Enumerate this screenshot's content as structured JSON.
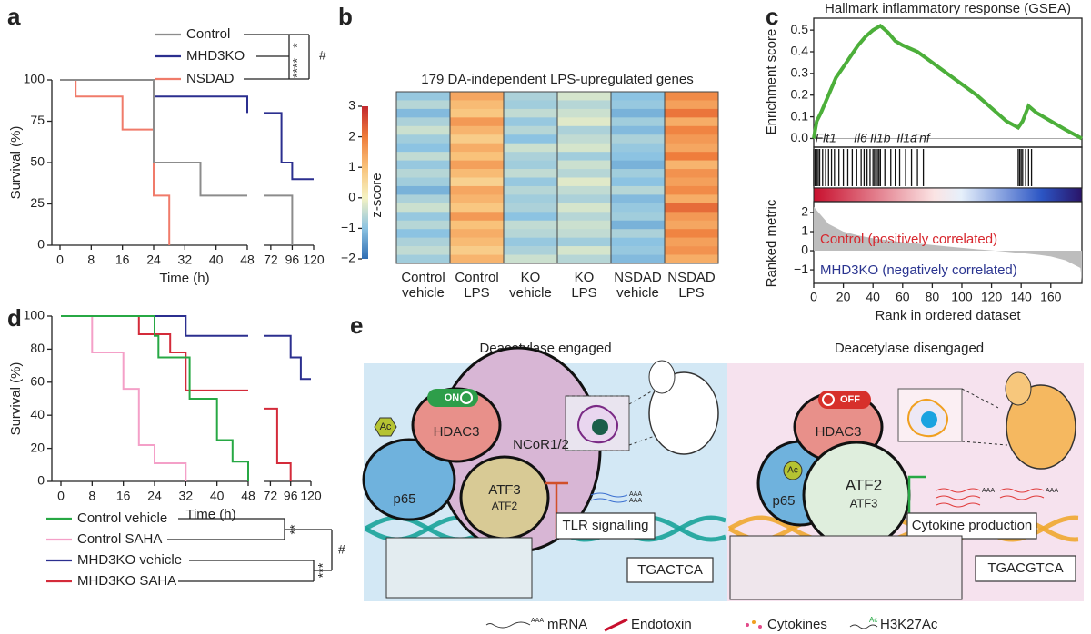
{
  "panel_labels": [
    "a",
    "b",
    "c",
    "d",
    "e"
  ],
  "chart_data": [
    {
      "type": "survival",
      "ylabel": "Survival (%)",
      "xlabel": "Time (h)",
      "xsegments": [
        {
          "xlim": [
            0,
            48
          ],
          "xticks": [
            0,
            8,
            16,
            24,
            32,
            40,
            48
          ]
        },
        {
          "xlim": [
            64,
            120
          ],
          "xticks": [
            72,
            96,
            120
          ]
        }
      ],
      "ylim": [
        0,
        100
      ],
      "yticks": [
        0,
        25,
        50,
        75,
        100
      ],
      "series": [
        {
          "name": "Control",
          "color": "#8c8c8c",
          "x": [
            0,
            24,
            24,
            36,
            36,
            48,
            48,
            64,
            96,
            96
          ],
          "values": [
            100,
            100,
            50,
            50,
            30,
            30,
            null,
            30,
            30,
            0
          ]
        },
        {
          "name": "MHD3KO",
          "color": "#2b2f8f",
          "x": [
            0,
            24,
            24,
            48,
            48,
            48,
            64,
            84,
            84,
            96,
            96,
            120
          ],
          "values": [
            100,
            100,
            90,
            90,
            80,
            null,
            80,
            80,
            50,
            50,
            40,
            40
          ]
        },
        {
          "name": "NSDAD",
          "color": "#f07b6a",
          "x": [
            0,
            4,
            4,
            16,
            16,
            24,
            24,
            28,
            28
          ],
          "values": [
            100,
            100,
            90,
            90,
            70,
            70,
            30,
            30,
            0
          ]
        }
      ],
      "annotations": [
        "*",
        "****",
        "#"
      ]
    },
    {
      "type": "heatmap",
      "title": "179 DA-independent LPS-upregulated genes",
      "categories": [
        "Control\nvehicle",
        "Control\nLPS",
        "KO\nvehicle",
        "KO\nLPS",
        "NSDAD\nvehicle",
        "NSDAD\nLPS"
      ],
      "zlabel": "z-score",
      "zlim": [
        -2,
        3
      ],
      "zticks": [
        {
          "value": -2,
          "label": "−2"
        },
        {
          "value": -1,
          "label": "−1"
        },
        0,
        1,
        2,
        3
      ],
      "colors": [
        "#2f6db3",
        "#8cc3e2",
        "#f5f3c3",
        "#f9c27a",
        "#ef7d3c",
        "#c3282e"
      ],
      "values": [
        [
          -0.9,
          1.4,
          -0.7,
          -0.3,
          -1.0,
          1.8
        ],
        [
          -0.6,
          1.1,
          -0.8,
          -0.6,
          -0.9,
          1.5
        ],
        [
          -1.1,
          0.9,
          -0.5,
          -0.4,
          -1.2,
          2.1
        ],
        [
          -0.7,
          1.6,
          -0.9,
          -0.2,
          -0.8,
          1.3
        ],
        [
          -0.4,
          1.2,
          -0.6,
          -0.7,
          -1.1,
          1.9
        ],
        [
          -0.8,
          0.8,
          -1.0,
          -0.5,
          -0.7,
          1.6
        ],
        [
          -1.0,
          1.3,
          -0.4,
          -0.3,
          -0.9,
          1.4
        ],
        [
          -0.5,
          1.0,
          -0.7,
          -0.8,
          -1.0,
          2.0
        ],
        [
          -0.9,
          1.5,
          -0.8,
          -0.4,
          -1.2,
          1.2
        ],
        [
          -0.6,
          1.1,
          -0.5,
          -0.6,
          -0.8,
          1.7
        ],
        [
          -0.8,
          0.7,
          -0.9,
          -0.2,
          -1.0,
          1.5
        ],
        [
          -1.2,
          1.4,
          -0.6,
          -0.5,
          -0.6,
          1.8
        ],
        [
          -0.7,
          1.2,
          -0.8,
          -0.7,
          -1.1,
          1.3
        ],
        [
          -0.4,
          0.9,
          -0.7,
          -0.3,
          -0.9,
          2.2
        ],
        [
          -0.9,
          1.6,
          -1.0,
          -0.6,
          -0.8,
          1.6
        ],
        [
          -0.6,
          1.0,
          -0.5,
          -0.4,
          -1.2,
          1.4
        ],
        [
          -1.0,
          1.3,
          -0.6,
          -0.5,
          -0.7,
          1.9
        ],
        [
          -0.7,
          1.1,
          -0.9,
          -0.8,
          -1.0,
          1.5
        ],
        [
          -0.5,
          0.8,
          -0.7,
          -0.3,
          -0.9,
          1.7
        ],
        [
          -0.8,
          1.2,
          -0.4,
          -0.6,
          -1.1,
          1.3
        ]
      ]
    },
    {
      "type": "gsea",
      "title": "Hallmark inflammatory response (GSEA)",
      "ylabel": "Enrichment score",
      "xlabel": "Rank in ordered dataset",
      "xlim": [
        0,
        181
      ],
      "xticks": [
        0,
        20,
        40,
        60,
        80,
        100,
        120,
        140,
        160
      ],
      "ylim": [
        -0.04,
        0.555
      ],
      "yticks": [
        {
          "value": 0,
          "label": "0.0"
        },
        0.1,
        0.2,
        0.3,
        0.4,
        0.5
      ],
      "color": "#4caf3a",
      "x": [
        0,
        2,
        5,
        10,
        15,
        20,
        25,
        30,
        35,
        40,
        45,
        50,
        55,
        60,
        70,
        80,
        90,
        100,
        110,
        120,
        130,
        138,
        141,
        145,
        150,
        160,
        170,
        181
      ],
      "values": [
        0,
        0.08,
        0.12,
        0.2,
        0.28,
        0.33,
        0.38,
        0.43,
        0.47,
        0.5,
        0.52,
        0.49,
        0.45,
        0.43,
        0.4,
        0.35,
        0.3,
        0.25,
        0.2,
        0.14,
        0.08,
        0.05,
        0.08,
        0.15,
        0.12,
        0.08,
        0.04,
        0
      ],
      "hits": [
        0,
        1,
        2,
        3,
        4,
        6,
        8,
        10,
        12,
        14,
        17,
        20,
        23,
        26,
        29,
        32,
        34,
        36,
        38,
        40,
        41,
        42,
        43,
        44,
        45,
        48,
        52,
        55,
        58,
        62,
        66,
        70,
        74,
        138,
        139,
        140,
        141,
        143,
        145,
        147
      ],
      "gene_labels": [
        "Flt1",
        "Il6",
        "Il1b",
        "Il1a",
        "Tnf"
      ],
      "gene_label_ranks": [
        1,
        27,
        38,
        56,
        66
      ],
      "metric": {
        "ylabel": "Ranked metric",
        "ylim": [
          -1.71,
          2.57
        ],
        "yticks": [
          {
            "value": -1,
            "label": "−1"
          },
          0,
          1,
          2
        ],
        "color": "#bdbdbd",
        "x": [
          0,
          10,
          20,
          30,
          40,
          50,
          60,
          70,
          80,
          90,
          100,
          110,
          120,
          130,
          140,
          150,
          160,
          170,
          180,
          181
        ],
        "values": [
          2.3,
          1.4,
          1.0,
          0.8,
          0.65,
          0.55,
          0.45,
          0.38,
          0.3,
          0.22,
          0.15,
          0.08,
          0.02,
          -0.05,
          -0.12,
          -0.2,
          -0.3,
          -0.5,
          -0.9,
          -1.6
        ],
        "pos_label": "Control (positively correlated)",
        "pos_color": "#d7262d",
        "neg_label": "MHD3KO (negatively correlated)",
        "neg_color": "#2b3590"
      }
    },
    {
      "type": "survival",
      "ylabel": "Survival (%)",
      "xlabel": "Time (h)",
      "xsegments": [
        {
          "xlim": [
            0,
            48
          ],
          "xticks": [
            0,
            8,
            16,
            24,
            32,
            40,
            48
          ]
        },
        {
          "xlim": [
            64,
            120
          ],
          "xticks": [
            72,
            96,
            120
          ]
        }
      ],
      "ylim": [
        0,
        100
      ],
      "yticks": [
        0,
        20,
        40,
        60,
        80,
        100
      ],
      "series": [
        {
          "name": "Control vehicle",
          "color": "#27a844",
          "x": [
            0,
            24,
            24,
            25,
            25,
            33,
            33,
            40,
            40,
            44,
            44,
            48,
            48
          ],
          "values": [
            100,
            100,
            88,
            88,
            75,
            75,
            50,
            50,
            25,
            25,
            12,
            12,
            0
          ]
        },
        {
          "name": "Control SAHA",
          "color": "#f4a0c8",
          "x": [
            0,
            8,
            8,
            16,
            16,
            20,
            20,
            24,
            24,
            32,
            32
          ],
          "values": [
            100,
            100,
            78,
            78,
            56,
            56,
            22,
            22,
            11,
            11,
            0
          ]
        },
        {
          "name": "MHD3KO vehicle",
          "color": "#2b2f8f",
          "x": [
            0,
            32,
            32,
            48,
            48,
            64,
            96,
            96,
            108,
            108,
            120
          ],
          "values": [
            100,
            100,
            88,
            88,
            null,
            88,
            88,
            75,
            75,
            62,
            62
          ]
        },
        {
          "name": "MHD3KO SAHA",
          "color": "#d42b3a",
          "x": [
            0,
            20,
            20,
            28,
            28,
            32,
            32,
            48,
            48,
            64,
            80,
            80,
            96,
            96
          ],
          "values": [
            100,
            100,
            89,
            89,
            78,
            78,
            55,
            55,
            null,
            44,
            44,
            11,
            11,
            0
          ]
        }
      ],
      "annotations": [
        "**",
        "***",
        "#"
      ]
    }
  ],
  "diagram": {
    "title_engaged": "Deacetylase engaged",
    "title_disengaged": "Deacetylase disengaged",
    "engaged": {
      "switch": "ON",
      "hdac": "HDAC3",
      "corepressor": "NCoR1/2",
      "p65": "p65",
      "atf_main": "ATF3",
      "atf_minor": "ATF2",
      "acetyl": "Ac",
      "outcome": "TLR signalling",
      "motif": "TGACTCA"
    },
    "disengaged": {
      "switch": "OFF",
      "hdac": "HDAC3",
      "p65": "p65",
      "acetyl": "Ac",
      "atf_main": "ATF2",
      "atf_minor": "ATF3",
      "outcome": "Cytokine production",
      "motif": "TGACGTCA"
    },
    "mrna_tail": "AAA",
    "histone_mark": "Ac",
    "legend": [
      "mRNA",
      "Endotoxin",
      "Cytokines",
      "H3K27Ac"
    ]
  }
}
